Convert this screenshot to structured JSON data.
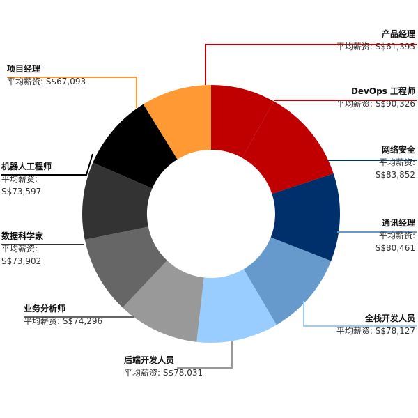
{
  "chart_data": {
    "type": "pie",
    "variant": "donut",
    "salary_prefix": "平均薪资: ",
    "slices": [
      {
        "name": "产品经理",
        "value": 61395,
        "value_label": "S$61,395",
        "color": "#c00000"
      },
      {
        "name": "DevOps 工程师",
        "value": 90326,
        "value_label": "S$90,326",
        "color": "#c00000"
      },
      {
        "name": "网络安全",
        "value": 83852,
        "value_label": "S$83,852",
        "color": "#00306b"
      },
      {
        "name": "通讯经理",
        "value": 80461,
        "value_label": "S$80,461",
        "color": "#6699cc"
      },
      {
        "name": "全栈开发人员",
        "value": 78127,
        "value_label": "S$78,127",
        "color": "#99ccff"
      },
      {
        "name": "后端开发人员",
        "value": 78031,
        "value_label": "S$78,031",
        "color": "#999999"
      },
      {
        "name": "业务分析师",
        "value": 74296,
        "value_label": "S$74,296",
        "color": "#666666"
      },
      {
        "name": "数据科学家",
        "value": 73902,
        "value_label": "S$73,902",
        "color": "#333333"
      },
      {
        "name": "机器人工程师",
        "value": 73597,
        "value_label": "S$73,597",
        "color": "#000000"
      },
      {
        "name": "项目经理",
        "value": 67093,
        "value_label": "S$67,093",
        "color": "#ff9933"
      }
    ]
  }
}
